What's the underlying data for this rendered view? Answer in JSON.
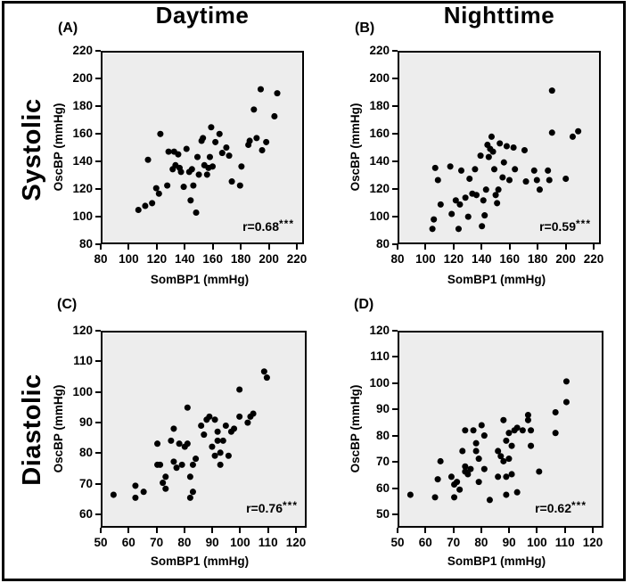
{
  "figure": {
    "column_headers": [
      {
        "label": "Daytime"
      },
      {
        "label": "Nighttime"
      }
    ],
    "row_headers": [
      {
        "label": "Systolic"
      },
      {
        "label": "Diastolic"
      }
    ]
  },
  "colors": {
    "dot": "#000000",
    "plot_bg": "#ededed",
    "frame": "#000000",
    "text": "#000000",
    "page_bg": "#ffffff"
  },
  "chart_data": [
    {
      "type": "scatter",
      "panel_letter": "(A)",
      "column": "Daytime",
      "row": "Systolic",
      "xlabel": "SomBP1 (mmHg)",
      "ylabel": "OscBP (mmHg)",
      "xlim": [
        80,
        220
      ],
      "ylim": [
        80,
        220
      ],
      "x_ticks": [
        80,
        100,
        120,
        140,
        160,
        180,
        200,
        220
      ],
      "y_ticks": [
        80,
        100,
        120,
        140,
        160,
        180,
        200,
        220
      ],
      "correlation_text": "r=0.68",
      "significance": "***",
      "points": [
        [
          106,
          104
        ],
        [
          111,
          107
        ],
        [
          113,
          141
        ],
        [
          116,
          109
        ],
        [
          119,
          120
        ],
        [
          121,
          116
        ],
        [
          122,
          160
        ],
        [
          127,
          122
        ],
        [
          128,
          147
        ],
        [
          131,
          134
        ],
        [
          132,
          147
        ],
        [
          133,
          137
        ],
        [
          135,
          145
        ],
        [
          136,
          135
        ],
        [
          137,
          132
        ],
        [
          139,
          121
        ],
        [
          141,
          149
        ],
        [
          143,
          132
        ],
        [
          144,
          111
        ],
        [
          145,
          134
        ],
        [
          146,
          122
        ],
        [
          148,
          102
        ],
        [
          149,
          143
        ],
        [
          150,
          130
        ],
        [
          152,
          155
        ],
        [
          153,
          157
        ],
        [
          154,
          137
        ],
        [
          156,
          130
        ],
        [
          157,
          135
        ],
        [
          158,
          143
        ],
        [
          159,
          165
        ],
        [
          160,
          136
        ],
        [
          162,
          154
        ],
        [
          165,
          160
        ],
        [
          167,
          146
        ],
        [
          170,
          150
        ],
        [
          172,
          144
        ],
        [
          174,
          125
        ],
        [
          180,
          122
        ],
        [
          181,
          136
        ],
        [
          186,
          152
        ],
        [
          187,
          155
        ],
        [
          190,
          178
        ],
        [
          192,
          157
        ],
        [
          195,
          193
        ],
        [
          196,
          148
        ],
        [
          199,
          154
        ],
        [
          205,
          173
        ],
        [
          207,
          190
        ]
      ]
    },
    {
      "type": "scatter",
      "panel_letter": "(B)",
      "column": "Nighttime",
      "row": "Systolic",
      "xlabel": "SomBP1 (mmHg)",
      "ylabel": "OscBP (mmHg)",
      "xlim": [
        80,
        220
      ],
      "ylim": [
        80,
        220
      ],
      "x_ticks": [
        80,
        100,
        120,
        140,
        160,
        180,
        200,
        220
      ],
      "y_ticks": [
        80,
        100,
        120,
        140,
        160,
        180,
        200,
        220
      ],
      "correlation_text": "r=0.59",
      "significance": "***",
      "points": [
        [
          104,
          90
        ],
        [
          105,
          97
        ],
        [
          106,
          135
        ],
        [
          108,
          126
        ],
        [
          110,
          108
        ],
        [
          117,
          136
        ],
        [
          118,
          101
        ],
        [
          121,
          111
        ],
        [
          123,
          90
        ],
        [
          124,
          108
        ],
        [
          125,
          133
        ],
        [
          128,
          113
        ],
        [
          130,
          99
        ],
        [
          131,
          127
        ],
        [
          133,
          116
        ],
        [
          135,
          134
        ],
        [
          136,
          115
        ],
        [
          139,
          144
        ],
        [
          140,
          92
        ],
        [
          141,
          111
        ],
        [
          142,
          100
        ],
        [
          143,
          119
        ],
        [
          144,
          152
        ],
        [
          145,
          143
        ],
        [
          146,
          149
        ],
        [
          147,
          158
        ],
        [
          148,
          147
        ],
        [
          149,
          134
        ],
        [
          150,
          115
        ],
        [
          151,
          109
        ],
        [
          152,
          119
        ],
        [
          153,
          153
        ],
        [
          155,
          128
        ],
        [
          156,
          139
        ],
        [
          158,
          151
        ],
        [
          160,
          126
        ],
        [
          163,
          150
        ],
        [
          164,
          134
        ],
        [
          171,
          148
        ],
        [
          172,
          125
        ],
        [
          178,
          133
        ],
        [
          180,
          126
        ],
        [
          182,
          119
        ],
        [
          188,
          133
        ],
        [
          189,
          126
        ],
        [
          191,
          161
        ],
        [
          191,
          192
        ],
        [
          201,
          127
        ],
        [
          206,
          158
        ],
        [
          210,
          162
        ]
      ]
    },
    {
      "type": "scatter",
      "panel_letter": "(C)",
      "column": "Daytime",
      "row": "Diastolic",
      "xlabel": "SomBP1 (mmHg)",
      "ylabel": "OscBP (mmHg)",
      "xlim": [
        50,
        120
      ],
      "ylim": [
        60,
        120
      ],
      "x_ticks": [
        50,
        60,
        70,
        80,
        90,
        100,
        110,
        120
      ],
      "y_ticks": [
        60,
        70,
        80,
        90,
        100,
        110,
        120
      ],
      "correlation_text": "r=0.76",
      "significance": "***",
      "points": [
        [
          54,
          66
        ],
        [
          62,
          65
        ],
        [
          62,
          69
        ],
        [
          65,
          67
        ],
        [
          70,
          76
        ],
        [
          70,
          83
        ],
        [
          71,
          76
        ],
        [
          72,
          70
        ],
        [
          73,
          68
        ],
        [
          73,
          72
        ],
        [
          75,
          84
        ],
        [
          76,
          77
        ],
        [
          76,
          88
        ],
        [
          77,
          75
        ],
        [
          78,
          83
        ],
        [
          79,
          76
        ],
        [
          80,
          82
        ],
        [
          81,
          83
        ],
        [
          81,
          95
        ],
        [
          82,
          72
        ],
        [
          82,
          65
        ],
        [
          83,
          67
        ],
        [
          83,
          76
        ],
        [
          84,
          78
        ],
        [
          86,
          89
        ],
        [
          87,
          86
        ],
        [
          88,
          91
        ],
        [
          89,
          92
        ],
        [
          90,
          82
        ],
        [
          91,
          79
        ],
        [
          91,
          91
        ],
        [
          92,
          84
        ],
        [
          92,
          87
        ],
        [
          93,
          76
        ],
        [
          93,
          80
        ],
        [
          94,
          84
        ],
        [
          95,
          89
        ],
        [
          96,
          79
        ],
        [
          97,
          87
        ],
        [
          98,
          88
        ],
        [
          100,
          92
        ],
        [
          100,
          101
        ],
        [
          103,
          90
        ],
        [
          104,
          92
        ],
        [
          105,
          93
        ],
        [
          109,
          107
        ],
        [
          110,
          105
        ]
      ]
    },
    {
      "type": "scatter",
      "panel_letter": "(D)",
      "column": "Nighttime",
      "row": "Diastolic",
      "xlabel": "SomBP1 (mmHg)",
      "ylabel": "OscBP (mmHg)",
      "xlim": [
        50,
        120
      ],
      "ylim": [
        50,
        120
      ],
      "x_ticks": [
        50,
        60,
        70,
        80,
        90,
        100,
        110,
        120
      ],
      "y_ticks": [
        50,
        60,
        70,
        80,
        90,
        100,
        110,
        120
      ],
      "correlation_text": "r=0.62",
      "significance": "***",
      "points": [
        [
          54,
          57
        ],
        [
          63,
          56
        ],
        [
          64,
          63
        ],
        [
          65,
          70
        ],
        [
          69,
          64
        ],
        [
          70,
          56
        ],
        [
          70,
          61
        ],
        [
          71,
          62
        ],
        [
          72,
          59
        ],
        [
          73,
          74
        ],
        [
          74,
          66
        ],
        [
          74,
          68
        ],
        [
          74,
          82
        ],
        [
          75,
          65
        ],
        [
          76,
          67
        ],
        [
          77,
          82
        ],
        [
          78,
          74
        ],
        [
          78,
          77
        ],
        [
          79,
          62
        ],
        [
          79,
          71
        ],
        [
          80,
          84
        ],
        [
          81,
          67
        ],
        [
          81,
          80
        ],
        [
          83,
          55
        ],
        [
          86,
          64
        ],
        [
          86,
          74
        ],
        [
          87,
          72
        ],
        [
          88,
          70
        ],
        [
          88,
          86
        ],
        [
          89,
          57
        ],
        [
          89,
          64
        ],
        [
          89,
          78
        ],
        [
          90,
          71
        ],
        [
          90,
          81
        ],
        [
          91,
          65
        ],
        [
          91,
          76
        ],
        [
          92,
          82
        ],
        [
          93,
          58
        ],
        [
          93,
          83
        ],
        [
          95,
          82
        ],
        [
          97,
          86
        ],
        [
          97,
          88
        ],
        [
          98,
          76
        ],
        [
          98,
          82
        ],
        [
          101,
          66
        ],
        [
          107,
          81
        ],
        [
          107,
          89
        ],
        [
          111,
          93
        ],
        [
          111,
          101
        ]
      ]
    }
  ]
}
